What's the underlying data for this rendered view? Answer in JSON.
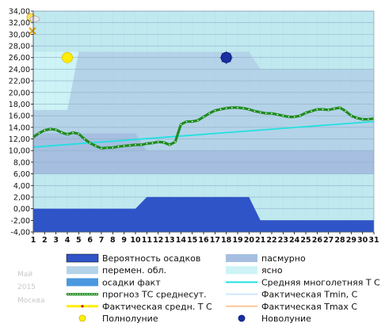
{
  "meta": {
    "month": "Май",
    "year": "2015",
    "city": "Москва"
  },
  "chart_data": {
    "type": "line",
    "x": [
      1,
      2,
      3,
      4,
      5,
      6,
      7,
      8,
      9,
      10,
      11,
      12,
      13,
      14,
      15,
      16,
      17,
      18,
      19,
      20,
      21,
      22,
      23,
      24,
      25,
      26,
      27,
      28,
      29,
      30,
      31
    ],
    "ylim": [
      -4,
      34
    ],
    "yticks": [
      "-4,00",
      "-2,00",
      "0,00",
      "2,00",
      "4,00",
      "6,00",
      "8,00",
      "10,00",
      "12,00",
      "14,00",
      "16,00",
      "18,00",
      "20,00",
      "22,00",
      "24,00",
      "26,00",
      "28,00",
      "30,00",
      "32,00",
      "34,00"
    ],
    "xticks": [
      "1",
      "2",
      "3",
      "4",
      "5",
      "6",
      "7",
      "8",
      "9",
      "10",
      "11",
      "12",
      "13",
      "14",
      "15",
      "16",
      "17",
      "18",
      "19",
      "20",
      "21",
      "22",
      "23",
      "24",
      "25",
      "26",
      "27",
      "28",
      "29",
      "30",
      "31"
    ],
    "colors": {
      "plot_bg": "#bfe8ef",
      "clear_band": "#cdf3f6",
      "cloudy_band": "#b4d3e8",
      "overcast_band": "#a6bfe0",
      "precip_prob": "#2f54c8",
      "precip_fact": "#4a98e0",
      "forecast_line": "#1e8c1e",
      "forecast_dots": "#ffffff",
      "norm_line": "#22e0e0",
      "fact_mean": "#ffee00",
      "tmin": "#cfe8ff",
      "tmax": "#ffc898",
      "full_moon": "#ffee00",
      "new_moon": "#1a2fa0"
    },
    "bands": {
      "upper_x": [
        1,
        4,
        5,
        20,
        21,
        31
      ],
      "upper_y": [
        17,
        17,
        27,
        27,
        24,
        24
      ],
      "lower_x": [
        1,
        10,
        11,
        20,
        21,
        31
      ],
      "lower_y": [
        13,
        13,
        10,
        10,
        10,
        10
      ],
      "bottom_x": [
        1,
        10,
        11,
        20,
        21,
        31
      ],
      "bottom_y": [
        10,
        10,
        10,
        10,
        10,
        10
      ]
    },
    "series": [
      {
        "name": "прогноз ТС среднесут.",
        "x": [
          1,
          1.5,
          2,
          2.5,
          3,
          3.5,
          4,
          4.5,
          5,
          5.5,
          6,
          6.5,
          7,
          7.5,
          8,
          8.5,
          9,
          9.5,
          10,
          10.5,
          11,
          11.5,
          12,
          12.5,
          13,
          13.5,
          14,
          14.5,
          15,
          15.5,
          16,
          16.5,
          17,
          17.5,
          18,
          18.5,
          19,
          19.5,
          20,
          20.5,
          21,
          21.5,
          22,
          22.5,
          23,
          23.5,
          24,
          24.5,
          25,
          25.5,
          26,
          26.5,
          27,
          27.5,
          28,
          28.5,
          29,
          29.5,
          30,
          30.5,
          31
        ],
        "y": [
          12.3,
          13.0,
          13.5,
          13.7,
          13.6,
          13.1,
          12.8,
          13.1,
          12.9,
          12.0,
          11.3,
          10.8,
          10.4,
          10.5,
          10.5,
          10.7,
          10.8,
          10.9,
          11.0,
          11.0,
          11.2,
          11.3,
          11.5,
          11.4,
          11.0,
          11.5,
          14.5,
          15.0,
          15.0,
          15.2,
          15.8,
          16.4,
          16.9,
          17.1,
          17.3,
          17.4,
          17.4,
          17.3,
          17.1,
          16.8,
          16.6,
          16.4,
          16.4,
          16.2,
          16.0,
          15.8,
          15.8,
          16.0,
          16.5,
          16.8,
          17.1,
          17.1,
          17.0,
          17.2,
          17.4,
          16.8,
          16.0,
          15.6,
          15.4,
          15.4,
          15.5
        ]
      },
      {
        "name": "Средняя многолетняя Т С",
        "x": [
          1,
          31
        ],
        "y": [
          10.6,
          15.0
        ]
      }
    ],
    "precip_probability": {
      "x": [
        1,
        10,
        11,
        20,
        21,
        31
      ],
      "y": [
        0,
        0,
        2,
        2,
        -2,
        -2
      ]
    },
    "moons": [
      {
        "name": "Полнолуние",
        "day": 4,
        "value": 26
      },
      {
        "name": "Новолуние",
        "day": 18,
        "value": 26
      }
    ],
    "legend": [
      {
        "label": "Вероятность осадков",
        "key": "precip_prob",
        "kind": "box"
      },
      {
        "label": "пасмурно",
        "key": "overcast_band",
        "kind": "box"
      },
      {
        "label": "перемен. обл.",
        "key": "cloudy_band",
        "kind": "box"
      },
      {
        "label": "ясно",
        "key": "clear_band",
        "kind": "box"
      },
      {
        "label": "осадки факт",
        "key": "precip_fact",
        "kind": "box"
      },
      {
        "label": "Средняя многолетняя Т С",
        "key": "norm_line",
        "kind": "line"
      },
      {
        "label": "прогноз ТС среднесут.",
        "key": "forecast_line",
        "kind": "dotted"
      },
      {
        "label": "Фактическая Tmin, C",
        "key": "tmin",
        "kind": "line"
      },
      {
        "label": "Фактическая средн. Т С",
        "key": "fact_mean",
        "kind": "line"
      },
      {
        "label": "Фактическая Tmax C",
        "key": "tmax",
        "kind": "line"
      },
      {
        "label": "Полнолуние",
        "key": "full_moon",
        "kind": "dot"
      },
      {
        "label": "Новолуние",
        "key": "new_moon",
        "kind": "dot"
      }
    ]
  }
}
